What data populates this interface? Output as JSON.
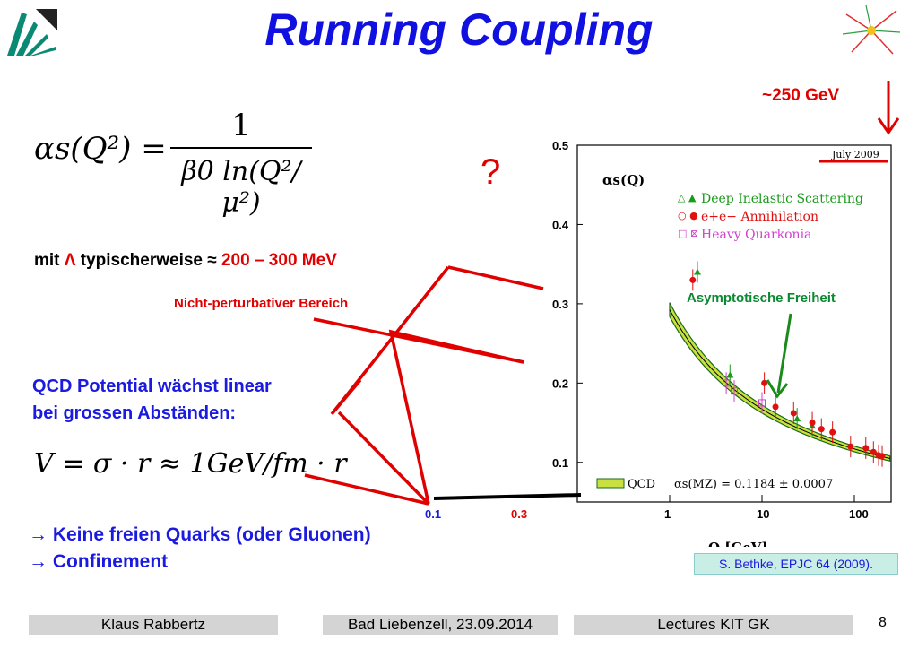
{
  "title": "Running Coupling",
  "energy_label": "~250 GeV",
  "question_mark": "?",
  "formula_alpha": {
    "lhs": "αs(Q²) =",
    "numerator": "1",
    "denominator": "β0 ln(Q²/μ²)"
  },
  "lambda_text": {
    "prefix": "mit ",
    "symbol": "Λ",
    "middle": " typischerweise ≈ ",
    "range": "200 – 300 MeV"
  },
  "nonpert_label": "Nicht-perturbativer Bereich",
  "asymp_label": "Asymptotische Freiheit",
  "potential_text": {
    "line1": "QCD Potential wächst linear",
    "line2": "bei grossen Abständen:"
  },
  "potential_formula": "V = σ · r ≈ 1GeV/fm · r",
  "conclusions": [
    "→ Keine freien Quarks (oder Gluonen)",
    "→ Confinement"
  ],
  "extra_ticks": {
    "t01": "0.1",
    "t03": "0.3"
  },
  "source": "S. Bethke, EPJC 64 (2009).",
  "footer": {
    "author": "Klaus Rabbertz",
    "place": "Bad Liebenzell, 23.09.2014",
    "course": "Lectures KIT GK",
    "page": "8"
  },
  "chart_data": {
    "type": "scatter",
    "ylabel": "αs(Q)",
    "xlabel": "Q [GeV]",
    "x_scale": "log",
    "xlim": [
      1,
      250
    ],
    "ylim": [
      0.05,
      0.5
    ],
    "yticks": [
      "0.5",
      "0.4",
      "0.3",
      "0.2",
      "0.1"
    ],
    "xticks": [
      "1",
      "10",
      "100"
    ],
    "date_label": "July 2009",
    "legend": [
      "Deep Inelastic Scattering",
      "e+e− Annihilation",
      "Heavy Quarkonia"
    ],
    "qcd_label": "QCD",
    "mz_label": "αs(MZ) = 0.1184 ± 0.0007",
    "series": [
      {
        "name": "Deep Inelastic Scattering",
        "color": "#1a9a1a",
        "x": [
          2.0,
          4.5,
          24,
          35
        ],
        "y": [
          0.34,
          0.21,
          0.155,
          0.146
        ]
      },
      {
        "name": "e+e− Annihilation",
        "color": "#e01010",
        "x": [
          1.78,
          10.6,
          14,
          22,
          35,
          44,
          58,
          91,
          133,
          161,
          183,
          200
        ],
        "y": [
          0.33,
          0.2,
          0.17,
          0.162,
          0.15,
          0.142,
          0.138,
          0.12,
          0.118,
          0.113,
          0.109,
          0.108
        ]
      },
      {
        "name": "Heavy Quarkonia",
        "color": "#d040d0",
        "x": [
          4.1,
          5,
          10
        ],
        "y": [
          0.2,
          0.19,
          0.175
        ]
      }
    ]
  }
}
